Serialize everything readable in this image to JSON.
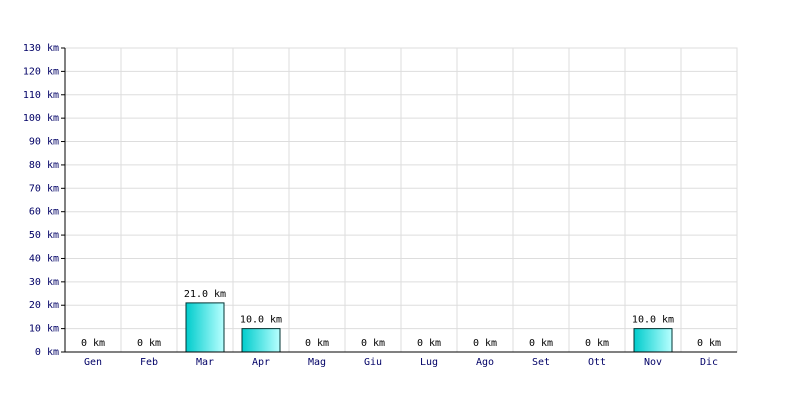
{
  "chart_data": {
    "type": "bar",
    "categories": [
      "Gen",
      "Feb",
      "Mar",
      "Apr",
      "Mag",
      "Giu",
      "Lug",
      "Ago",
      "Set",
      "Ott",
      "Nov",
      "Dic"
    ],
    "values": [
      0,
      0,
      21,
      10,
      0,
      0,
      0,
      0,
      0,
      0,
      10,
      0
    ],
    "value_labels": [
      "0 km",
      "0 km",
      "21.0 km",
      "10.0 km",
      "0 km",
      "0 km",
      "0 km",
      "0 km",
      "0 km",
      "0 km",
      "10.0 km",
      "0 km"
    ],
    "color": "#00cccc",
    "ylim": [
      0,
      130
    ],
    "yticks": [
      {
        "value": 0,
        "label": "0 km"
      },
      {
        "value": 10,
        "label": "10 km"
      },
      {
        "value": 20,
        "label": "20 km"
      },
      {
        "value": 30,
        "label": "30 km"
      },
      {
        "value": 40,
        "label": "40 km"
      },
      {
        "value": 50,
        "label": "50 km"
      },
      {
        "value": 60,
        "label": "60 km"
      },
      {
        "value": 70,
        "label": "70 km"
      },
      {
        "value": 80,
        "label": "80 km"
      },
      {
        "value": 90,
        "label": "90 km"
      },
      {
        "value": 100,
        "label": "100 km"
      },
      {
        "value": 110,
        "label": "110 km"
      },
      {
        "value": 120,
        "label": "120 km"
      },
      {
        "value": 130,
        "label": "130 km"
      }
    ],
    "grid": true
  }
}
